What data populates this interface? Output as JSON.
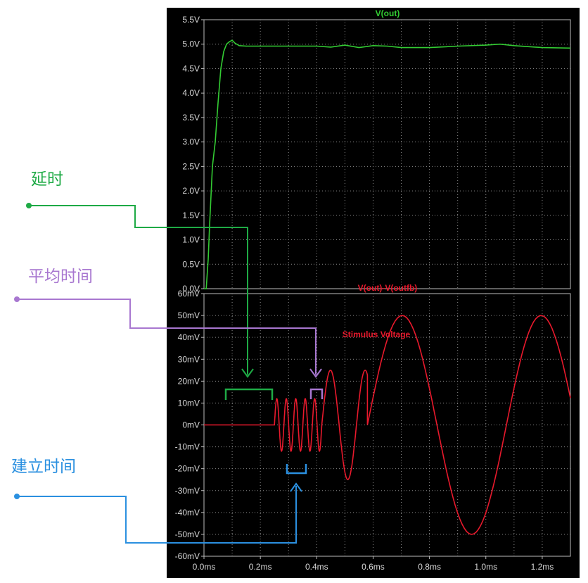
{
  "chart_data": [
    {
      "type": "line",
      "title": "V(out)",
      "ylim": [
        0,
        5.5
      ],
      "xlim": [
        0,
        1.3
      ],
      "x_unit": "ms",
      "grid": true,
      "y_ticks": [
        "0.0V",
        "0.5V",
        "1.0V",
        "1.5V",
        "2.0V",
        "2.5V",
        "3.0V",
        "3.5V",
        "4.0V",
        "4.5V",
        "5.0V",
        "5.5V"
      ],
      "series": [
        {
          "color": "#33cc33",
          "x": [
            0.0,
            0.008,
            0.015,
            0.02,
            0.03,
            0.04,
            0.05,
            0.06,
            0.07,
            0.08,
            0.09,
            0.1,
            0.11,
            0.125,
            0.15,
            0.2,
            0.3,
            0.4,
            0.45,
            0.5,
            0.55,
            0.6,
            0.65,
            0.7,
            0.8,
            0.9,
            1.0,
            1.05,
            1.1,
            1.2,
            1.3
          ],
          "y": [
            0.0,
            0.0,
            0.6,
            1.3,
            2.5,
            3.0,
            3.8,
            4.5,
            4.85,
            5.0,
            5.05,
            5.08,
            5.02,
            4.97,
            4.96,
            4.96,
            4.96,
            4.96,
            4.94,
            4.98,
            4.93,
            4.97,
            4.96,
            4.93,
            4.93,
            4.96,
            4.98,
            5.0,
            4.97,
            4.93,
            4.92
          ]
        }
      ]
    },
    {
      "type": "line",
      "title": "V(out)-V(outfb)",
      "ylim": [
        -60,
        60
      ],
      "xlim": [
        0,
        1.3
      ],
      "x_unit": "ms",
      "grid": true,
      "y_ticks": [
        "-60mV",
        "-50mV",
        "-40mV",
        "-30mV",
        "-20mV",
        "-10mV",
        "0mV",
        "10mV",
        "20mV",
        "30mV",
        "40mV",
        "50mV",
        "60mV"
      ],
      "x_ticks": [
        "0.0ms",
        "0.2ms",
        "0.4ms",
        "0.6ms",
        "0.8ms",
        "1.0ms",
        "1.2ms"
      ],
      "annotations": [
        "Stimulus Voltage"
      ],
      "series": [
        {
          "color": "#e8192c",
          "segments": [
            {
              "x0": 0.0,
              "x1": 0.25,
              "amplitude_mV": 0,
              "period_ms": 0
            },
            {
              "x0": 0.25,
              "x1": 0.418,
              "amplitude_mV": 12,
              "period_ms": 0.0336
            },
            {
              "x0": 0.418,
              "x1": 0.58,
              "amplitude_mV": 25,
              "period_ms": 0.123
            },
            {
              "x0": 0.58,
              "x1": 1.3,
              "amplitude_mV": 50,
              "period_ms": 0.493
            }
          ]
        }
      ]
    }
  ],
  "annotations": {
    "delay": {
      "label": "延时",
      "color": "#1eaa45"
    },
    "avg": {
      "label": "平均时间",
      "color": "#a877d0"
    },
    "settle": {
      "label": "建立时间",
      "color": "#2b90e0"
    }
  }
}
